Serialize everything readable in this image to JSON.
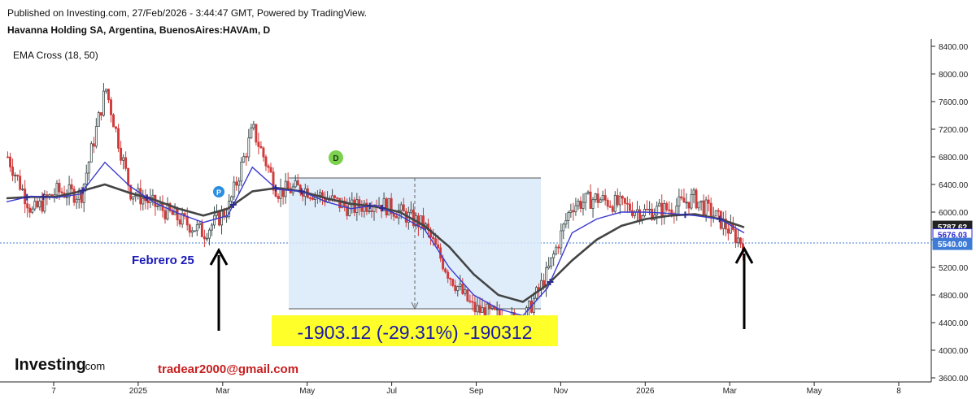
{
  "header": {
    "published": "Published on Investing.com, 27/Feb/2026 - 3:44:47 GMT, Powered by TradingView.",
    "symbol": "Havanna Holding SA, Argentina, BuenosAires:HAVAm, D",
    "indicator": "EMA Cross (18, 50)"
  },
  "logo": {
    "brand": "Investing",
    "suffix": ".com"
  },
  "annotations": {
    "label": "Febrero 25",
    "email": "tradear2000@gmail.com",
    "measure": "-1903.12 (-29.31%) -190312",
    "marker_p": "P",
    "marker_d": "D"
  },
  "price_badges": [
    {
      "label": "5787.62",
      "value": 5787.62,
      "bg": "#222222",
      "fg": "#ffffff"
    },
    {
      "label": "5676.03",
      "value": 5676.03,
      "bg": "#ffffff",
      "fg": "#2a2ad4"
    },
    {
      "label": "5540.00",
      "value": 5540.0,
      "bg": "#3e7bd6",
      "fg": "#ffffff"
    }
  ],
  "colors": {
    "up": "#3b4b4b",
    "down": "#d23a3a",
    "ema_fast": "#3a3ad0",
    "ema_slow": "#444444",
    "measure_box": "#d9eaf9",
    "measure_text_bg": "#ffff2a",
    "measure_text": "#1a1aa8",
    "label_color": "#1a1ab8",
    "email_color": "#c81e1e",
    "marker_p": "#2b8ee0",
    "marker_d": "#7cd14f"
  },
  "chart_data": {
    "type": "candlestick",
    "title": "Havanna Holding SA, Argentina, BuenosAires:HAVAm, D",
    "y_ticks": [
      "8400.00",
      "8000.00",
      "7600.00",
      "7200.00",
      "6800.00",
      "6400.00",
      "6000.00",
      "5600.00",
      "5200.00",
      "4800.00",
      "4400.00",
      "4000.00",
      "3600.00"
    ],
    "ylim": [
      3600,
      8400
    ],
    "x_ticks": [
      "7",
      "2025",
      "Mar",
      "May",
      "Jul",
      "Sep",
      "Nov",
      "2026",
      "Mar",
      "May",
      "8"
    ],
    "grid": false,
    "series": [
      {
        "name": "EMA 18",
        "values": [
          6150,
          6230,
          6210,
          6260,
          6720,
          6380,
          6140,
          5980,
          5850,
          5950,
          6650,
          6330,
          6300,
          6150,
          6050,
          6100,
          5950,
          5750,
          5200,
          4800,
          4600,
          4500,
          4900,
          5700,
          5900,
          6000,
          6000,
          5980,
          5950,
          5900,
          5700
        ]
      },
      {
        "name": "EMA 50",
        "values": [
          6200,
          6220,
          6220,
          6300,
          6400,
          6280,
          6180,
          6050,
          5950,
          6050,
          6300,
          6350,
          6300,
          6200,
          6120,
          6080,
          6000,
          5800,
          5500,
          5100,
          4800,
          4700,
          4950,
          5300,
          5600,
          5800,
          5900,
          5950,
          5970,
          5900,
          5780
        ]
      }
    ],
    "price_series": [
      6800,
      6000,
      6300,
      6250,
      7800,
      6300,
      6100,
      5900,
      5700,
      6050,
      7200,
      6300,
      6350,
      6200,
      6050,
      6150,
      6000,
      5800,
      5100,
      4600,
      4500,
      4400,
      5100,
      6100,
      6200,
      6100,
      6000,
      6050,
      6200,
      5900,
      5540
    ],
    "measure": {
      "from_price": 6500,
      "to_price": 4597,
      "change": -1903.12,
      "change_pct": -29.31
    }
  }
}
